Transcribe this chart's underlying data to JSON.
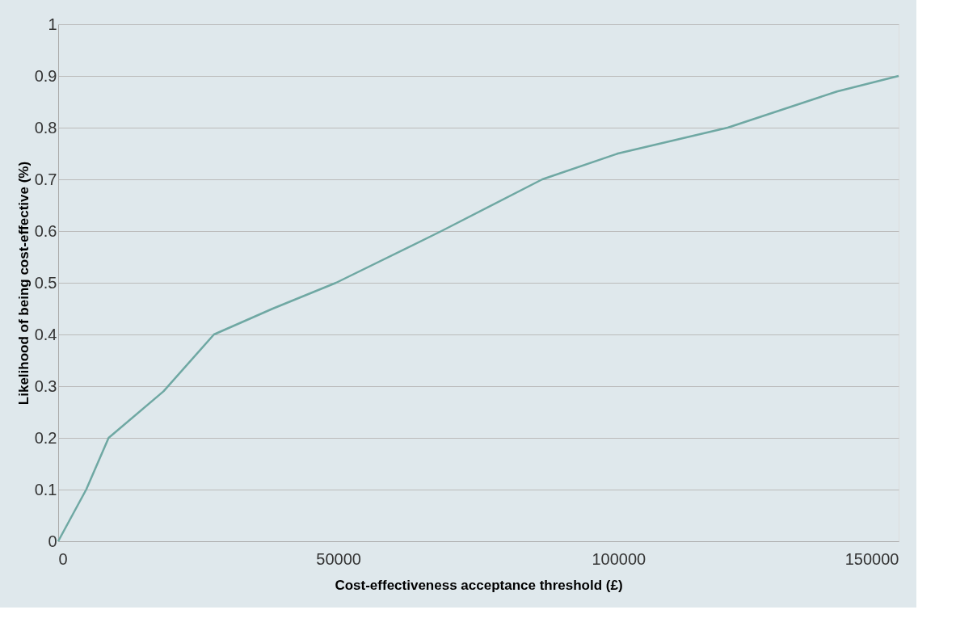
{
  "chart_data": {
    "type": "line",
    "xlabel": "Cost-effectiveness acceptance threshold (£)",
    "ylabel": "Likelihood of being cost-effective (%)",
    "x": [
      0,
      5000,
      9000,
      18800,
      27800,
      38300,
      49600,
      68400,
      86400,
      99900,
      119500,
      139000,
      150000
    ],
    "series": [
      {
        "color": "#6fa8a3",
        "values": [
          0,
          0.1,
          0.2,
          0.29,
          0.4,
          0.45,
          0.5,
          0.6,
          0.7,
          0.75,
          0.8,
          0.87,
          0.9
        ]
      }
    ],
    "xlim": [
      0,
      150000
    ],
    "xticks": [
      0,
      50000,
      100000,
      150000
    ],
    "ylim": [
      0,
      1
    ],
    "yticks": [
      0,
      0.1,
      0.2,
      0.3,
      0.4,
      0.5,
      0.6,
      0.7,
      0.8,
      0.9,
      1
    ],
    "grid": "y",
    "marker": "none",
    "line_style": "solid",
    "legend": false
  }
}
